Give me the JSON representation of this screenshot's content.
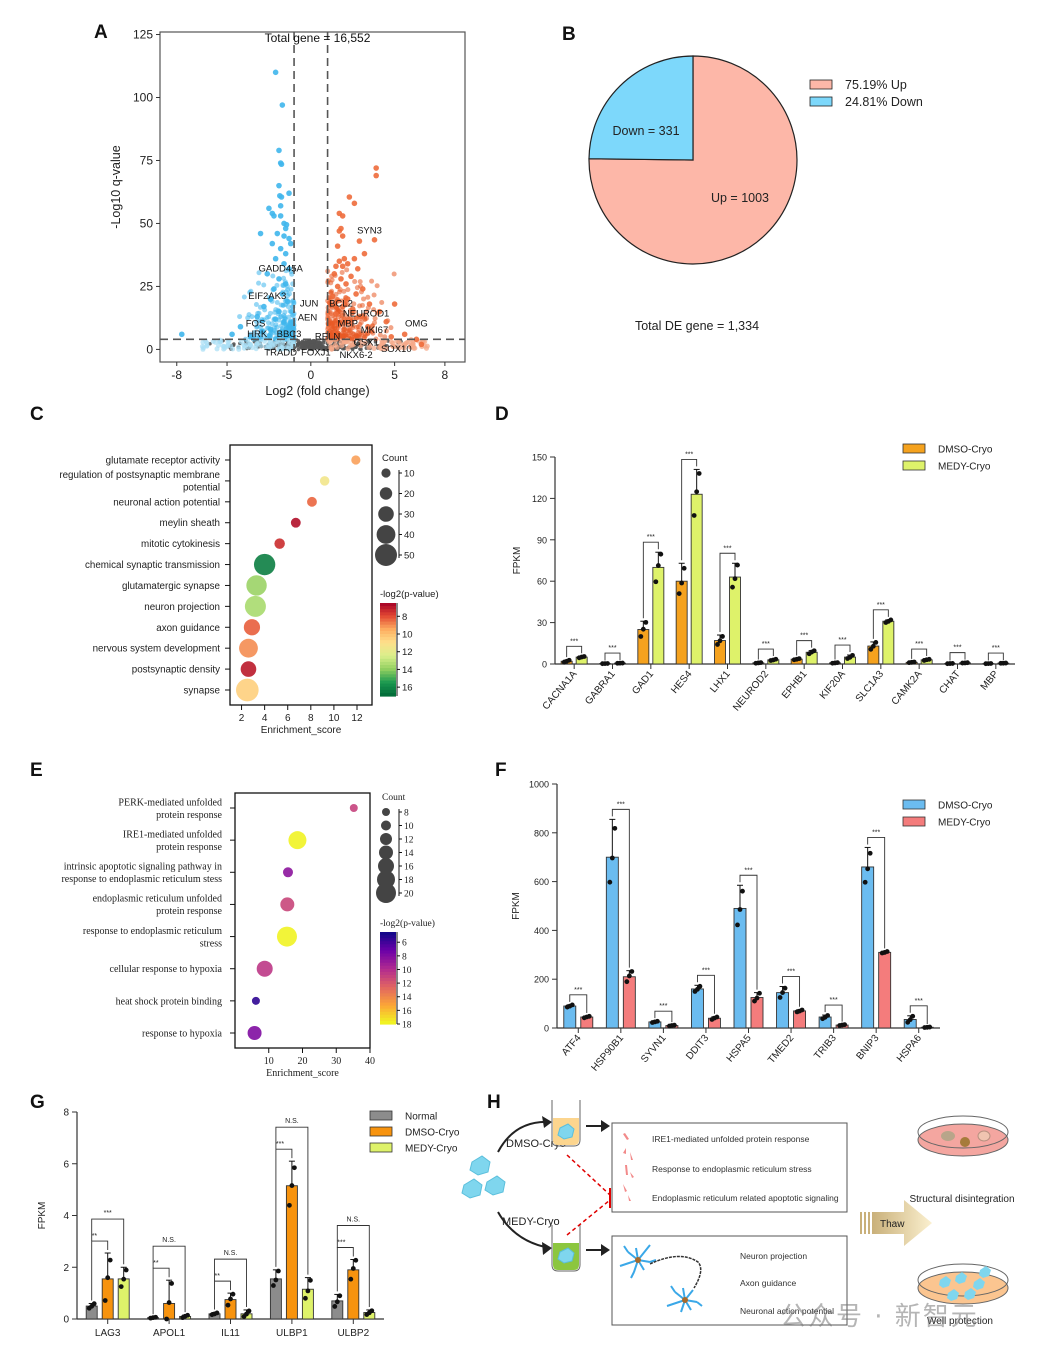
{
  "panels": {
    "A": "A",
    "B": "B",
    "C": "C",
    "D": "D",
    "E": "E",
    "F": "F",
    "G": "G",
    "H": "H"
  },
  "chart_data": [
    {
      "id": "A",
      "type": "scatter",
      "title": "Total gene = 16,552",
      "xlabel": "Log2 (fold change)",
      "ylabel": "-Log10 q-value",
      "xlim": [
        -9,
        9.2
      ],
      "ylim": [
        -5,
        126
      ],
      "xticks": [
        -8,
        -5,
        0,
        5,
        8
      ],
      "yticks": [
        0,
        25,
        50,
        75,
        100,
        125
      ],
      "thresholds": {
        "log2fc": [
          -1,
          1
        ],
        "q": 4
      },
      "colors": {
        "down": "#3fb6ec",
        "up": "#ee6b3b",
        "ns": "#555555"
      },
      "points_down": [
        [
          -2.1,
          110
        ],
        [
          -1.7,
          97
        ],
        [
          -1.9,
          79
        ],
        [
          -1.8,
          74
        ],
        [
          -1.75,
          73.5
        ],
        [
          -1.9,
          65
        ],
        [
          -1.85,
          61
        ],
        [
          -1.75,
          60.5
        ],
        [
          -1.3,
          62
        ],
        [
          -1.8,
          57
        ],
        [
          -2.5,
          56
        ],
        [
          -2.3,
          54
        ],
        [
          -2.2,
          53
        ],
        [
          -1.8,
          53
        ],
        [
          -1.6,
          50
        ],
        [
          -1.45,
          49.5
        ],
        [
          -1.5,
          48
        ],
        [
          -3.0,
          46
        ],
        [
          -2.0,
          46
        ],
        [
          -1.6,
          45
        ],
        [
          -1.3,
          44
        ],
        [
          -1.2,
          42
        ],
        [
          -2.3,
          42
        ],
        [
          -1.8,
          40
        ],
        [
          -1.5,
          38
        ],
        [
          -2.1,
          36
        ],
        [
          -1.6,
          34
        ],
        [
          -1.3,
          32
        ],
        [
          -2.6,
          30
        ],
        [
          -1.9,
          28
        ],
        [
          -1.5,
          26
        ],
        [
          -2.2,
          24
        ],
        [
          -1.7,
          22
        ],
        [
          -2.4,
          20
        ],
        [
          -1.4,
          19
        ],
        [
          -2.8,
          17
        ],
        [
          -1.9,
          15
        ],
        [
          -3.2,
          13
        ],
        [
          -2.1,
          12
        ],
        [
          -1.6,
          11
        ],
        [
          -4.2,
          9
        ],
        [
          -7.7,
          6
        ],
        [
          -4.7,
          6
        ],
        [
          -3.6,
          5
        ],
        [
          -2.9,
          7
        ],
        [
          -2.4,
          8
        ],
        [
          -1.3,
          9
        ],
        [
          -1.8,
          6
        ]
      ],
      "points_up": [
        [
          3.9,
          72
        ],
        [
          3.9,
          69
        ],
        [
          2.3,
          60.5
        ],
        [
          2.6,
          58
        ],
        [
          1.7,
          54
        ],
        [
          1.9,
          53
        ],
        [
          1.8,
          48
        ],
        [
          1.9,
          45
        ],
        [
          1.7,
          47
        ],
        [
          3.8,
          43.5
        ],
        [
          2.9,
          43
        ],
        [
          1.6,
          41
        ],
        [
          3.2,
          38
        ],
        [
          2.0,
          36
        ],
        [
          2.6,
          36
        ],
        [
          1.7,
          35
        ],
        [
          2.2,
          34
        ],
        [
          1.9,
          33
        ],
        [
          1.5,
          33
        ],
        [
          2.8,
          32
        ],
        [
          1.4,
          30
        ],
        [
          2.4,
          29
        ],
        [
          1.8,
          28
        ],
        [
          2.1,
          26
        ],
        [
          1.6,
          25
        ],
        [
          3.1,
          24
        ],
        [
          2.7,
          22
        ],
        [
          1.3,
          21
        ],
        [
          2.2,
          20
        ],
        [
          3.5,
          18
        ],
        [
          5.0,
          18
        ],
        [
          1.9,
          17
        ],
        [
          2.5,
          16
        ],
        [
          4.1,
          15
        ],
        [
          1.5,
          14
        ],
        [
          3.0,
          13
        ],
        [
          2.0,
          12
        ],
        [
          4.5,
          11
        ],
        [
          1.7,
          10
        ],
        [
          3.4,
          9
        ],
        [
          5.6,
          6
        ],
        [
          6.3,
          4
        ],
        [
          6.6,
          2
        ],
        [
          4.8,
          5
        ]
      ],
      "labels": [
        {
          "text": "SYN3",
          "x": 3.5,
          "y": 46
        },
        {
          "text": "GADD45A",
          "x": -1.8,
          "y": 31
        },
        {
          "text": "EIF2AK3",
          "x": -2.6,
          "y": 20
        },
        {
          "text": "JUN",
          "x": -0.1,
          "y": 17
        },
        {
          "text": "BCL2",
          "x": 1.8,
          "y": 17
        },
        {
          "text": "NEUROD1",
          "x": 3.3,
          "y": 13
        },
        {
          "text": "AEN",
          "x": -0.2,
          "y": 11.5
        },
        {
          "text": "FOS",
          "x": -3.3,
          "y": 9
        },
        {
          "text": "OMG",
          "x": 6.3,
          "y": 9
        },
        {
          "text": "MBP",
          "x": 2.2,
          "y": 9
        },
        {
          "text": "MKI67",
          "x": 3.8,
          "y": 6.5
        },
        {
          "text": "HRK",
          "x": -3.2,
          "y": 5
        },
        {
          "text": "BBC3",
          "x": -1.3,
          "y": 5
        },
        {
          "text": "RELN",
          "x": 1.0,
          "y": 4
        },
        {
          "text": "GSX1",
          "x": 3.3,
          "y": 1.5
        },
        {
          "text": "SOX10",
          "x": 5.1,
          "y": -1
        },
        {
          "text": "TRADD",
          "x": -1.8,
          "y": -2.5
        },
        {
          "text": "FOXJ1",
          "x": 0.3,
          "y": -2.5
        },
        {
          "text": "NKX6-2",
          "x": 2.7,
          "y": -3.5
        }
      ]
    },
    {
      "id": "B",
      "type": "pie",
      "slices": [
        {
          "name": "Up",
          "value": 1003,
          "percent": "75.19%",
          "color": "#fdb7a8",
          "label": "Up = 1003",
          "legend": "75.19%  Up"
        },
        {
          "name": "Down",
          "value": 331,
          "percent": "24.81%",
          "color": "#7dd8fb",
          "label": "Down = 331",
          "legend": "24.81%  Down"
        }
      ],
      "caption": "Total DE gene = 1,334"
    },
    {
      "id": "C",
      "type": "scatter",
      "subtype": "bubble",
      "xlabel": "Enrichment_score",
      "xlim": [
        1,
        13.3
      ],
      "xticks": [
        2,
        4,
        6,
        8,
        10,
        12
      ],
      "size_legend_title": "Count",
      "size_legend": [
        10,
        20,
        30,
        40,
        50
      ],
      "color_legend_title": "-log2(p-value)",
      "color_ticks": [
        8,
        10,
        12,
        14,
        16
      ],
      "color_range": [
        6.5,
        17
      ],
      "terms": [
        {
          "label": [
            "glutamate receptor activity"
          ],
          "x": 11.9,
          "count": 10,
          "p": 9.3
        },
        {
          "label": [
            "regulation of postsynaptic membrane",
            "potential"
          ],
          "x": 9.2,
          "count": 11,
          "p": 11.5
        },
        {
          "label": [
            "neuronal action potential"
          ],
          "x": 8.1,
          "count": 12,
          "p": 8.4
        },
        {
          "label": [
            "meylin sheath"
          ],
          "x": 6.7,
          "count": 12,
          "p": 6.8
        },
        {
          "label": [
            "mitotic cytokinesis"
          ],
          "x": 5.3,
          "count": 14,
          "p": 7.4
        },
        {
          "label": [
            "chemical synaptic transmission"
          ],
          "x": 4.0,
          "count": 48,
          "p": 16.3
        },
        {
          "label": [
            "glutamatergic synapse"
          ],
          "x": 3.3,
          "count": 45,
          "p": 13.8
        },
        {
          "label": [
            "neuron projection"
          ],
          "x": 3.2,
          "count": 47,
          "p": 13.5
        },
        {
          "label": [
            "axon guidance"
          ],
          "x": 2.9,
          "count": 32,
          "p": 8.3
        },
        {
          "label": [
            "nervous system development"
          ],
          "x": 2.6,
          "count": 40,
          "p": 9.0
        },
        {
          "label": [
            "postsynaptic density"
          ],
          "x": 2.6,
          "count": 30,
          "p": 7.0
        },
        {
          "label": [
            "synapse"
          ],
          "x": 2.5,
          "count": 52,
          "p": 10.5
        }
      ]
    },
    {
      "id": "D",
      "type": "bar",
      "ylabel": "FPKM",
      "ylim": [
        0,
        150
      ],
      "yticks": [
        0,
        30,
        60,
        90,
        120,
        150
      ],
      "categories": [
        "CACNA1A",
        "GABRA1",
        "GAD1",
        "HES4",
        "LHX1",
        "NEUROD2",
        "EPHB1",
        "KIF20A",
        "SLC1A3",
        "CAMK2A",
        "CHAT",
        "MBP"
      ],
      "series": [
        {
          "name": "DMSO-Cryo",
          "color": "#f5a21e",
          "values": [
            2,
            0.3,
            25,
            60,
            17,
            0.8,
            3.5,
            0.8,
            13,
            1.2,
            0.3,
            0.3
          ],
          "err": [
            0.8,
            0.1,
            6,
            13,
            4,
            0.3,
            0.5,
            0.3,
            3,
            0.3,
            0.1,
            0.1
          ]
        },
        {
          "name": "MEDY-Cryo",
          "color": "#def26a",
          "values": [
            5,
            0.6,
            70,
            123,
            63,
            3,
            8.5,
            5,
            31,
            3,
            0.8,
            0.6
          ],
          "err": [
            0.6,
            0.1,
            11,
            18,
            10,
            0.6,
            1.2,
            1.5,
            1,
            0.6,
            0.2,
            0.1
          ]
        }
      ],
      "significance": [
        "***",
        "***",
        "***",
        "***",
        "***",
        "***",
        "***",
        "***",
        "***",
        "***",
        "***",
        "***"
      ]
    },
    {
      "id": "E",
      "type": "scatter",
      "subtype": "bubble",
      "xlabel": "Enrichment_score",
      "xlim": [
        0,
        40
      ],
      "xticks": [
        10,
        20,
        30,
        40
      ],
      "size_legend_title": "Count",
      "size_legend": [
        8,
        10,
        12,
        14,
        16,
        18,
        20
      ],
      "color_legend_title": "-log2(p-value)",
      "color_ticks": [
        6,
        8,
        10,
        12,
        14,
        16,
        18
      ],
      "color_range": [
        4.5,
        18
      ],
      "terms": [
        {
          "label": [
            "PERK-mediated unfolded",
            "protein response"
          ],
          "x": 35.2,
          "count": 8,
          "p": 11
        },
        {
          "label": [
            "IRE1-mediated unfolded",
            "protein response"
          ],
          "x": 18.5,
          "count": 18,
          "p": 17.8
        },
        {
          "label": [
            "intrinsic apoptotic signaling pathway in",
            "response to endoplasmic reticulum stess"
          ],
          "x": 15.7,
          "count": 10,
          "p": 8.5
        },
        {
          "label": [
            "endoplasmic reticulum unfolded",
            "protein response"
          ],
          "x": 15.5,
          "count": 14,
          "p": 11.2
        },
        {
          "label": [
            "response to endoplasmic reticulum",
            "stress"
          ],
          "x": 15.4,
          "count": 20,
          "p": 17.8
        },
        {
          "label": [
            "cellular response to hypoxia"
          ],
          "x": 8.8,
          "count": 16,
          "p": 10.5
        },
        {
          "label": [
            "heat shock protein binding"
          ],
          "x": 6.2,
          "count": 8,
          "p": 5.5
        },
        {
          "label": [
            "response to hypoxia"
          ],
          "x": 5.8,
          "count": 14,
          "p": 8
        }
      ]
    },
    {
      "id": "F",
      "type": "bar",
      "ylabel": "FPKM",
      "ylim": [
        0,
        1000
      ],
      "yticks": [
        0,
        200,
        400,
        600,
        800,
        1000
      ],
      "categories": [
        "ATF4",
        "HSP90B1",
        "SYVN1",
        "DDIT3",
        "HSPA5",
        "TMED2",
        "TRIB3",
        "BNIP3",
        "HSPA6"
      ],
      "series": [
        {
          "name": "DMSO-Cryo",
          "color": "#6bbcf0",
          "values": [
            90,
            700,
            25,
            160,
            490,
            145,
            45,
            660,
            35
          ],
          "err": [
            5,
            155,
            3,
            15,
            95,
            25,
            8,
            80,
            15
          ]
        },
        {
          "name": "MEDY-Cryo",
          "color": "#f47c7c",
          "values": [
            45,
            210,
            10,
            40,
            125,
            70,
            12,
            310,
            3
          ],
          "err": [
            4,
            25,
            2,
            6,
            20,
            5,
            2,
            4,
            1
          ]
        }
      ],
      "significance": [
        "***",
        "***",
        "***",
        "***",
        "***",
        "***",
        "***",
        "***",
        "***"
      ]
    },
    {
      "id": "G",
      "type": "bar",
      "ylabel": "FPKM",
      "ylim": [
        0,
        8
      ],
      "yticks": [
        0,
        2,
        4,
        6,
        8
      ],
      "categories": [
        "LAG3",
        "APOL1",
        "IL11",
        "ULBP1",
        "ULBP2"
      ],
      "series": [
        {
          "name": "Normal",
          "color": "#8c8c8c",
          "values": [
            0.5,
            0.05,
            0.2,
            1.55,
            0.7
          ],
          "err": [
            0.1,
            0.02,
            0.05,
            0.35,
            0.25
          ]
        },
        {
          "name": "DMSO-Cryo",
          "color": "#f7930e",
          "values": [
            1.55,
            0.6,
            0.75,
            5.15,
            1.9
          ],
          "err": [
            1.0,
            0.9,
            0.25,
            0.95,
            0.4
          ]
        },
        {
          "name": "MEDY-Cryo",
          "color": "#def26a",
          "values": [
            1.55,
            0.1,
            0.2,
            1.15,
            0.25
          ],
          "err": [
            0.45,
            0.05,
            0.15,
            0.45,
            0.1
          ]
        }
      ],
      "significance": [
        {
          "short": "**",
          "long": "***"
        },
        {
          "short": "**",
          "long": "N.S."
        },
        {
          "short": "**",
          "long": "N.S."
        },
        {
          "short": "***",
          "long": "N.S."
        },
        {
          "short": "***",
          "long": "N.S."
        }
      ]
    }
  ],
  "diagram_H": {
    "dmso_label": "DMSO-Cryo",
    "medy_label": "MEDY-Cryo",
    "top_box": [
      "IRE1-mediated unfolded protein response",
      "Response to endoplasmic reticulum stress",
      "Endoplasmic reticulum related apoptotic signaling"
    ],
    "bottom_box": [
      "Neuron projection",
      "Axon guidance",
      "Neuronal action potential"
    ],
    "thaw_label": "Thaw",
    "top_outcome": "Structural disintegration",
    "bottom_outcome": "Well protection"
  },
  "watermark": "公众号 · 新智元"
}
